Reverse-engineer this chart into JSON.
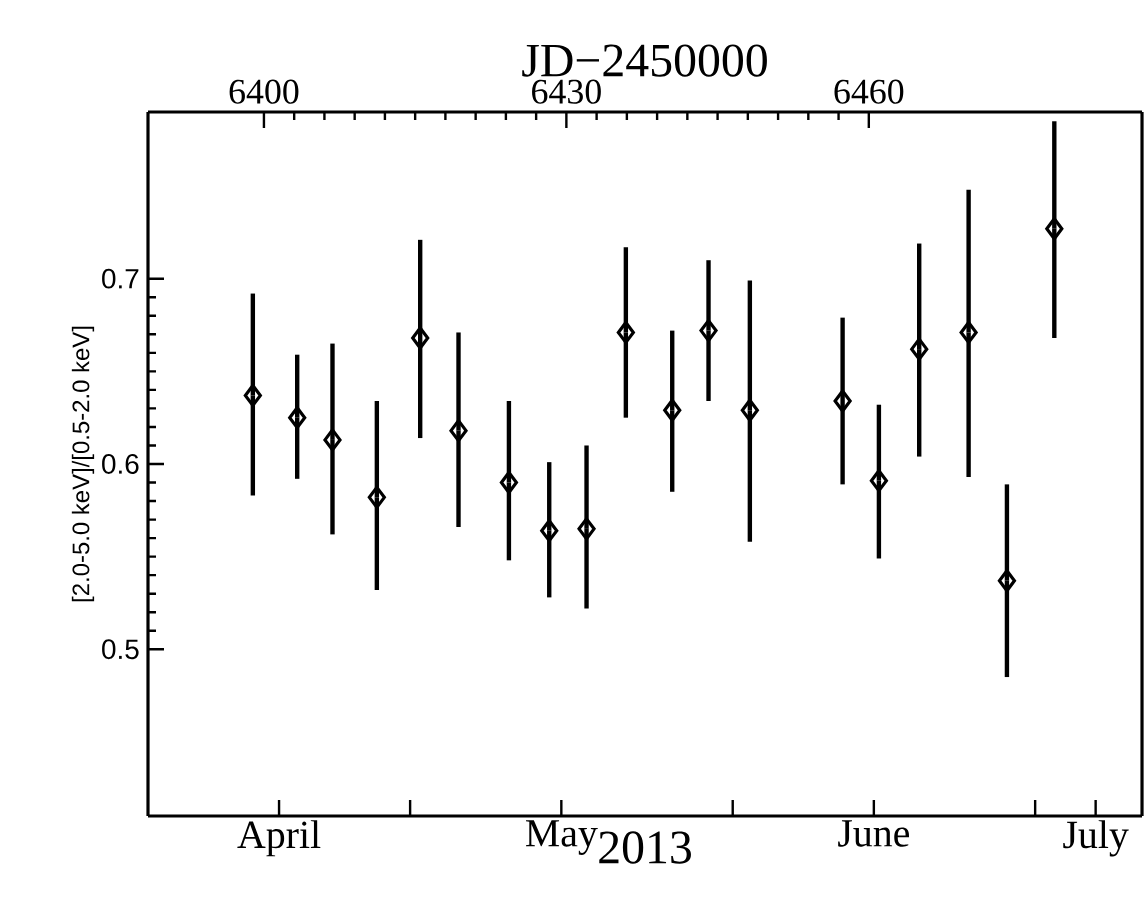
{
  "chart_data": {
    "type": "scatter",
    "xlabel": "2013",
    "x2label": "JD−2450000",
    "ylabel": "[2.0-5.0 keV]/[0.5-2.0 keV]",
    "xlim": [
      "2013-04-06",
      "2013-07-13T14:24"
    ],
    "x2lim": [
      6388.5,
      6487.1
    ],
    "ylim": [
      0.41,
      0.79
    ],
    "xticks": [
      {
        "value": "2013-04-19",
        "label": "April"
      },
      {
        "value": "2013-05-02",
        "label": null
      },
      {
        "value": "2013-05-17",
        "label": "May"
      },
      {
        "value": "2013-06-03",
        "label": null
      },
      {
        "value": "2013-06-17",
        "label": "June"
      },
      {
        "value": "2013-07-03",
        "label": null
      },
      {
        "value": "2013-07-09",
        "label": "July"
      }
    ],
    "x2ticks": [
      6400,
      6430,
      6460
    ],
    "yticks": [
      {
        "value": 0.5,
        "label": "0.5"
      },
      {
        "value": 0.6,
        "label": "0.6"
      },
      {
        "value": 0.7,
        "label": "0.7"
      }
    ],
    "x": [
      "2013-04-16T09:36",
      "2013-04-20T19:12",
      "2013-04-24T07:12",
      "2013-04-28T16:48",
      "2013-05-03T00:00",
      "2013-05-06T19:12",
      "2013-05-11T19:12",
      "2013-05-15T19:12",
      "2013-05-19T12:00",
      "2013-05-23T09:36",
      "2013-05-28T00:00",
      "2013-05-31T14:24",
      "2013-06-04T16:48",
      "2013-06-13T21:36",
      "2013-06-17T12:00",
      "2013-06-21T12:00",
      "2013-06-26T09:36",
      "2013-06-30T04:48",
      "2013-07-04T21:36"
    ],
    "series": [
      {
        "color": "#000000",
        "values": [
          0.637,
          0.625,
          0.613,
          0.582,
          0.668,
          0.618,
          0.59,
          0.564,
          0.565,
          0.671,
          0.629,
          0.672,
          0.629,
          0.634,
          0.591,
          0.662,
          0.671,
          0.537,
          0.727
        ],
        "errors": [
          [
            0.583,
            0.692
          ],
          [
            0.592,
            0.659
          ],
          [
            0.562,
            0.665
          ],
          [
            0.532,
            0.634
          ],
          [
            0.614,
            0.721
          ],
          [
            0.566,
            0.671
          ],
          [
            0.548,
            0.634
          ],
          [
            0.528,
            0.601
          ],
          [
            0.522,
            0.61
          ],
          [
            0.625,
            0.717
          ],
          [
            0.585,
            0.672
          ],
          [
            0.634,
            0.71
          ],
          [
            0.558,
            0.699
          ],
          [
            0.589,
            0.679
          ],
          [
            0.549,
            0.632
          ],
          [
            0.604,
            0.719
          ],
          [
            0.593,
            0.748
          ],
          [
            0.485,
            0.589
          ],
          [
            0.668,
            0.785
          ]
        ]
      }
    ],
    "marker": "diamond",
    "grid": false
  }
}
